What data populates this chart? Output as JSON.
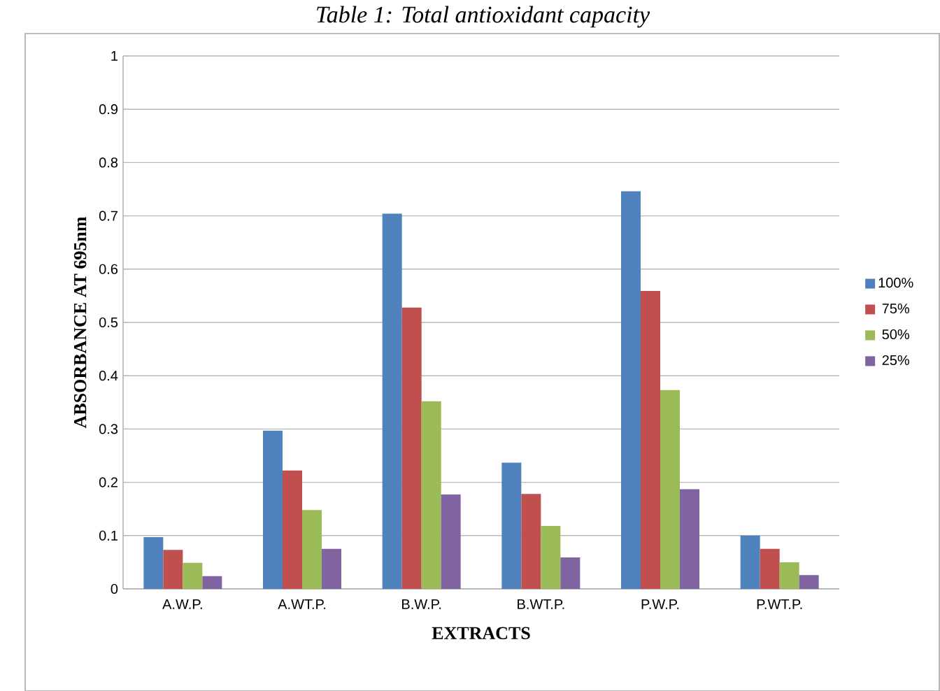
{
  "chart_data": {
    "type": "bar",
    "title": "Table 1: Total antioxidant capacity",
    "xlabel": "EXTRACTS",
    "ylabel": "ABSORBANCE AT 695nm",
    "categories": [
      "A.W.P.",
      "A.WT.P.",
      "B.W.P.",
      "B.WT.P.",
      "P.W.P.",
      "P.WT.P."
    ],
    "series": [
      {
        "name": "100%",
        "color": "#4f81bd",
        "values": [
          0.097,
          0.297,
          0.704,
          0.237,
          0.746,
          0.1
        ]
      },
      {
        "name": "75%",
        "color": "#c0504d",
        "values": [
          0.073,
          0.222,
          0.528,
          0.178,
          0.559,
          0.075
        ]
      },
      {
        "name": "50%",
        "color": "#9bbb59",
        "values": [
          0.049,
          0.148,
          0.352,
          0.118,
          0.373,
          0.05
        ]
      },
      {
        "name": "25%",
        "color": "#8064a2",
        "values": [
          0.024,
          0.075,
          0.177,
          0.059,
          0.187,
          0.026
        ]
      }
    ],
    "ylim": [
      0,
      1
    ],
    "yticks": [
      0,
      0.1,
      0.2,
      0.3,
      0.4,
      0.5,
      0.6,
      0.7,
      0.8,
      0.9,
      1
    ],
    "grid": "y",
    "legend": "right"
  }
}
